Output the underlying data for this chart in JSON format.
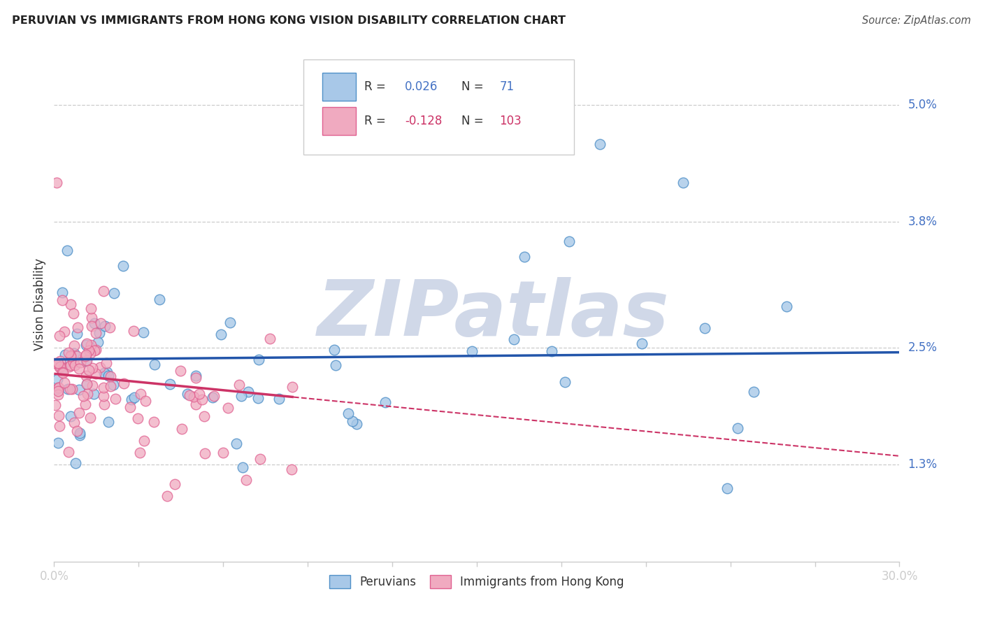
{
  "title": "PERUVIAN VS IMMIGRANTS FROM HONG KONG VISION DISABILITY CORRELATION CHART",
  "source": "Source: ZipAtlas.com",
  "ylabel": "Vision Disability",
  "y_ticks": [
    1.3,
    2.5,
    3.8,
    5.0
  ],
  "y_tick_labels": [
    "1.3%",
    "2.5%",
    "3.8%",
    "5.0%"
  ],
  "xmin": 0.0,
  "xmax": 30.0,
  "ymin": 0.3,
  "ymax": 5.6,
  "blue_R": 0.026,
  "blue_N": 71,
  "pink_R": -0.128,
  "pink_N": 103,
  "blue_color": "#a8c8e8",
  "pink_color": "#f0aac0",
  "blue_edge_color": "#5090c8",
  "pink_edge_color": "#e06090",
  "blue_line_color": "#2255aa",
  "pink_line_color": "#cc3366",
  "watermark_color": "#d0d8e8",
  "watermark": "ZIPatlas",
  "title_color": "#222222",
  "source_color": "#555555",
  "label_color": "#4472c4",
  "grid_color": "#cccccc",
  "axis_color": "#cccccc"
}
